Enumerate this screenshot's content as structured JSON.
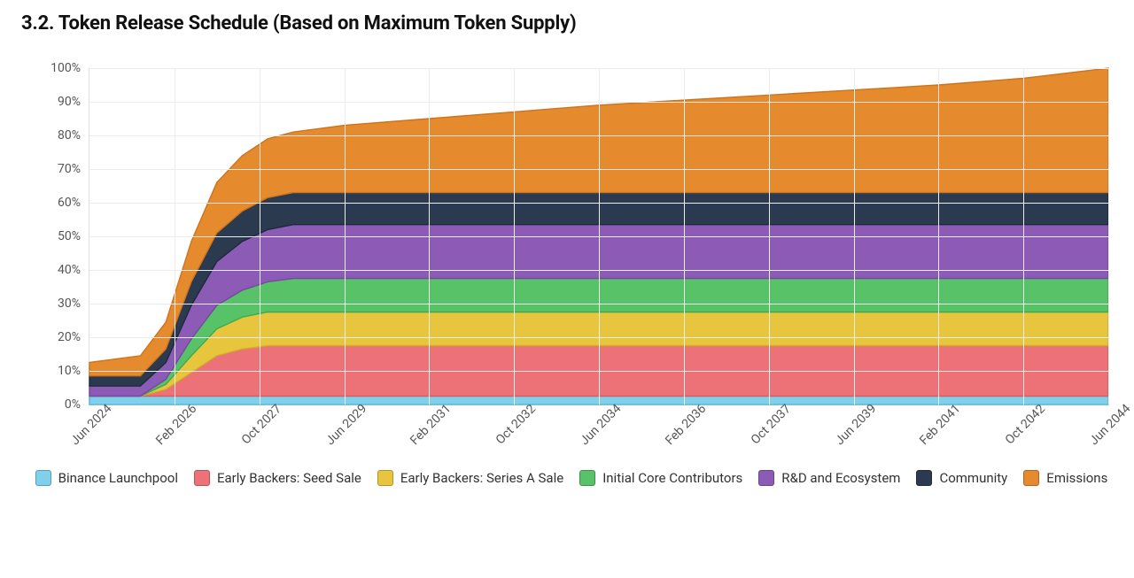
{
  "title": "3.2. Token Release Schedule (Based on Maximum Token Supply)",
  "chart": {
    "type": "stacked-area",
    "background_color": "#ffffff",
    "grid_color": "#ececec",
    "axis_color": "#e0e0e0",
    "ylabel_suffix": "%",
    "ylim": [
      0,
      100
    ],
    "yticks": [
      0,
      10,
      20,
      30,
      40,
      50,
      60,
      70,
      80,
      90,
      100
    ],
    "ytick_labels": [
      "0%",
      "10%",
      "20%",
      "30%",
      "40%",
      "50%",
      "60%",
      "70%",
      "80%",
      "90%",
      "100%"
    ],
    "xtick_labels": [
      "Jun 2024",
      "Feb 2026",
      "Oct 2027",
      "Jun 2029",
      "Feb 2031",
      "Oct 2032",
      "Jun 2034",
      "Feb 2036",
      "Oct 2037",
      "Jun 2039",
      "Feb 2041",
      "Oct 2042",
      "Jun 2044"
    ],
    "xtick_positions": [
      0,
      10,
      20,
      30,
      40,
      50,
      60,
      70,
      80,
      90,
      100,
      110,
      120
    ],
    "xlim": [
      0,
      120
    ],
    "x_samples": [
      0,
      3,
      6,
      9,
      12,
      15,
      18,
      21,
      24,
      30,
      40,
      50,
      60,
      70,
      80,
      90,
      100,
      110,
      120
    ],
    "series": [
      {
        "name": "Binance Launchpool",
        "color": "#7ed0ec",
        "stroke": "#5bb9da",
        "y": [
          2.5,
          2.5,
          2.5,
          2.5,
          2.5,
          2.5,
          2.5,
          2.5,
          2.5,
          2.5,
          2.5,
          2.5,
          2.5,
          2.5,
          2.5,
          2.5,
          2.5,
          2.5,
          2.5
        ]
      },
      {
        "name": "Early Backers: Seed Sale",
        "color": "#ed7277",
        "stroke": "#d85b60",
        "y": [
          0,
          0,
          0,
          2,
          7,
          12,
          14,
          15,
          15,
          15,
          15,
          15,
          15,
          15,
          15,
          15,
          15,
          15,
          15
        ]
      },
      {
        "name": "Early Backers: Series A Sale",
        "color": "#e7c63e",
        "stroke": "#cfae2a",
        "y": [
          0,
          0,
          0,
          1.5,
          5,
          8,
          9.5,
          10,
          10,
          10,
          10,
          10,
          10,
          10,
          10,
          10,
          10,
          10,
          10
        ]
      },
      {
        "name": "Initial Core Contributors",
        "color": "#57c268",
        "stroke": "#3faa50",
        "y": [
          0,
          0,
          0,
          1.5,
          5,
          7,
          8,
          9,
          10,
          10,
          10,
          10,
          10,
          10,
          10,
          10,
          10,
          10,
          10
        ]
      },
      {
        "name": "R&D and Ecosystem",
        "color": "#8b5bb6",
        "stroke": "#754aa0",
        "y": [
          3,
          3,
          3,
          5,
          10,
          13,
          14.5,
          15.5,
          16,
          16,
          16,
          16,
          16,
          16,
          16,
          16,
          16,
          16,
          16
        ]
      },
      {
        "name": "Community",
        "color": "#2c3a4f",
        "stroke": "#1e2a3b",
        "y": [
          3,
          3,
          3,
          4,
          7,
          8.5,
          9,
          9.5,
          9.5,
          9.5,
          9.5,
          9.5,
          9.5,
          9.5,
          9.5,
          9.5,
          9.5,
          9.5,
          9.5
        ]
      },
      {
        "name": "Emissions",
        "color": "#e68a2e",
        "stroke": "#cc741d",
        "y": [
          4,
          5,
          6,
          8,
          12,
          15,
          16.5,
          17.5,
          18,
          20,
          22,
          24,
          26,
          27.5,
          29,
          30.5,
          32,
          34,
          37
        ]
      }
    ],
    "label_fontsize": 14,
    "title_fontsize": 22,
    "xlabel_rotation_deg": -45,
    "area_stroke_width": 1.4
  },
  "legend": [
    {
      "label": "Binance Launchpool",
      "color": "#7ed0ec"
    },
    {
      "label": "Early Backers: Seed Sale",
      "color": "#ed7277"
    },
    {
      "label": "Early Backers: Series A Sale",
      "color": "#e7c63e"
    },
    {
      "label": "Initial Core Contributors",
      "color": "#57c268"
    },
    {
      "label": "R&D and Ecosystem",
      "color": "#8b5bb6"
    },
    {
      "label": "Community",
      "color": "#2c3a4f"
    },
    {
      "label": "Emissions",
      "color": "#e68a2e"
    }
  ]
}
